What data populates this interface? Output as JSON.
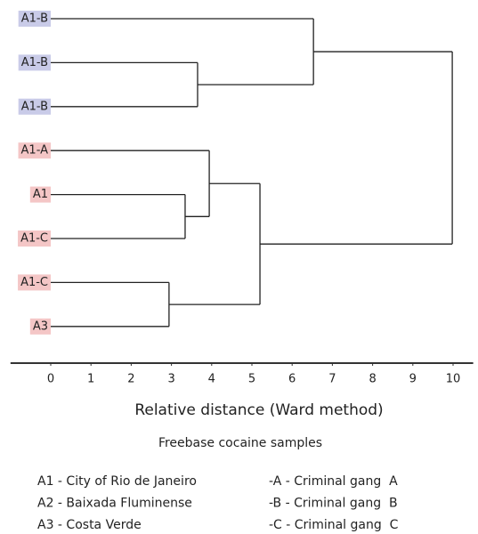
{
  "chart_data": {
    "type": "dendrogram",
    "leaves": [
      "A1-B",
      "A1-B",
      "A1-B",
      "A1-A",
      "A1",
      "A1-C",
      "A1-C",
      "A3"
    ],
    "leaf_colors": [
      "#c9cbe8",
      "#c9cbe8",
      "#c9cbe8",
      "#f4c6c6",
      "#f4c6c6",
      "#f4c6c6",
      "#f4c6c6",
      "#f4c6c6"
    ],
    "merges": [
      {
        "children": [
          1,
          2
        ],
        "height": 3.65
      },
      {
        "children": [
          0,
          8
        ],
        "height": 6.53
      },
      {
        "children": [
          4,
          5
        ],
        "height": 3.34
      },
      {
        "children": [
          3,
          10
        ],
        "height": 3.94
      },
      {
        "children": [
          6,
          7
        ],
        "height": 2.94
      },
      {
        "children": [
          11,
          12
        ],
        "height": 5.2
      },
      {
        "children": [
          9,
          13
        ],
        "height": 9.98
      }
    ],
    "line_color": "#222",
    "xlim": [
      -1,
      10.5
    ],
    "xticks": [
      0,
      1,
      2,
      3,
      4,
      5,
      6,
      7,
      8,
      9,
      10
    ],
    "xlabel": "Relative distance (Ward method)",
    "caption": "Freebase cocaine samples",
    "legend_left": [
      "A1 - City of Rio de Janeiro",
      "A2 - Baixada Fluminense",
      "A3 - Costa Verde"
    ],
    "legend_right": [
      "-A - Criminal gang  A",
      "-B - Criminal gang  B",
      "-C - Criminal gang  C"
    ]
  }
}
